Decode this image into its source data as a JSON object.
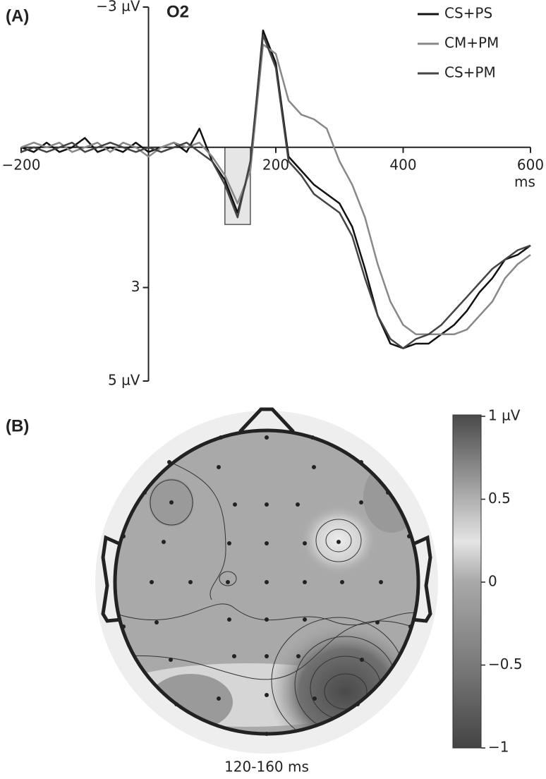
{
  "chart_data": [
    {
      "type": "line",
      "panel_label": "(A)",
      "title": "O2",
      "x_label": "ms",
      "x": [
        -200,
        -180,
        -160,
        -140,
        -120,
        -100,
        -80,
        -60,
        -40,
        -20,
        0,
        20,
        40,
        60,
        80,
        100,
        120,
        140,
        160,
        180,
        200,
        220,
        240,
        260,
        280,
        300,
        320,
        340,
        360,
        380,
        400,
        420,
        440,
        460,
        480,
        500,
        520,
        540,
        560,
        580,
        600
      ],
      "xlim": [
        -200,
        600
      ],
      "xticks": [
        {
          "value": -200,
          "label": "−200"
        },
        200,
        400,
        600
      ],
      "ylim": [
        -3,
        5
      ],
      "y_inverted": true,
      "yticks": [
        {
          "value": -3,
          "label": "−3 µV"
        },
        3,
        {
          "value": 5,
          "label": "5 µV"
        }
      ],
      "window": [
        120,
        160
      ],
      "series": [
        {
          "name": "CS+PS",
          "color": "#111111",
          "values": [
            0,
            0.1,
            -0.1,
            0.1,
            0,
            -0.2,
            0.1,
            0,
            0.1,
            -0.1,
            0.1,
            0,
            -0.1,
            0.1,
            -0.4,
            0.3,
            0.7,
            1.4,
            0.4,
            -2.5,
            -1.8,
            0.2,
            0.5,
            0.8,
            1.0,
            1.2,
            1.7,
            2.6,
            3.6,
            4.2,
            4.3,
            4.2,
            4.2,
            4.0,
            3.8,
            3.5,
            3.1,
            2.8,
            2.4,
            2.3,
            2.1
          ]
        },
        {
          "name": "CM+PM",
          "color": "#888888",
          "values": [
            0,
            -0.1,
            0,
            -0.1,
            0.1,
            0,
            -0.1,
            0.1,
            -0.1,
            0,
            0.2,
            0,
            -0.1,
            0,
            -0.1,
            0.2,
            0.6,
            1.2,
            0.5,
            -2.2,
            -2.0,
            -1.0,
            -0.7,
            -0.6,
            -0.4,
            0.3,
            0.8,
            1.5,
            2.5,
            3.3,
            3.8,
            4.0,
            4.0,
            4.0,
            4.0,
            3.9,
            3.6,
            3.3,
            2.8,
            2.5,
            2.3
          ]
        },
        {
          "name": "CS+PM",
          "color": "#444444",
          "values": [
            0.1,
            0,
            0.1,
            0,
            -0.1,
            0.1,
            0,
            -0.1,
            0,
            0.1,
            0,
            0.1,
            0,
            -0.1,
            0.1,
            0.3,
            0.8,
            1.5,
            0.3,
            -2.4,
            -1.7,
            0.3,
            0.6,
            1.0,
            1.2,
            1.4,
            1.9,
            2.8,
            3.6,
            4.1,
            4.3,
            4.1,
            4.0,
            3.8,
            3.5,
            3.2,
            2.9,
            2.6,
            2.4,
            2.2,
            2.1
          ]
        }
      ]
    },
    {
      "type": "topomap",
      "panel_label": "(B)",
      "caption": "120-160 ms",
      "clim": [
        -1,
        1
      ],
      "cticks": [
        {
          "value": 1,
          "label": "1 µV"
        },
        0.5,
        0,
        {
          "value": -0.5,
          "label": "−0.5"
        },
        {
          "value": -1,
          "label": "−1"
        }
      ]
    }
  ]
}
